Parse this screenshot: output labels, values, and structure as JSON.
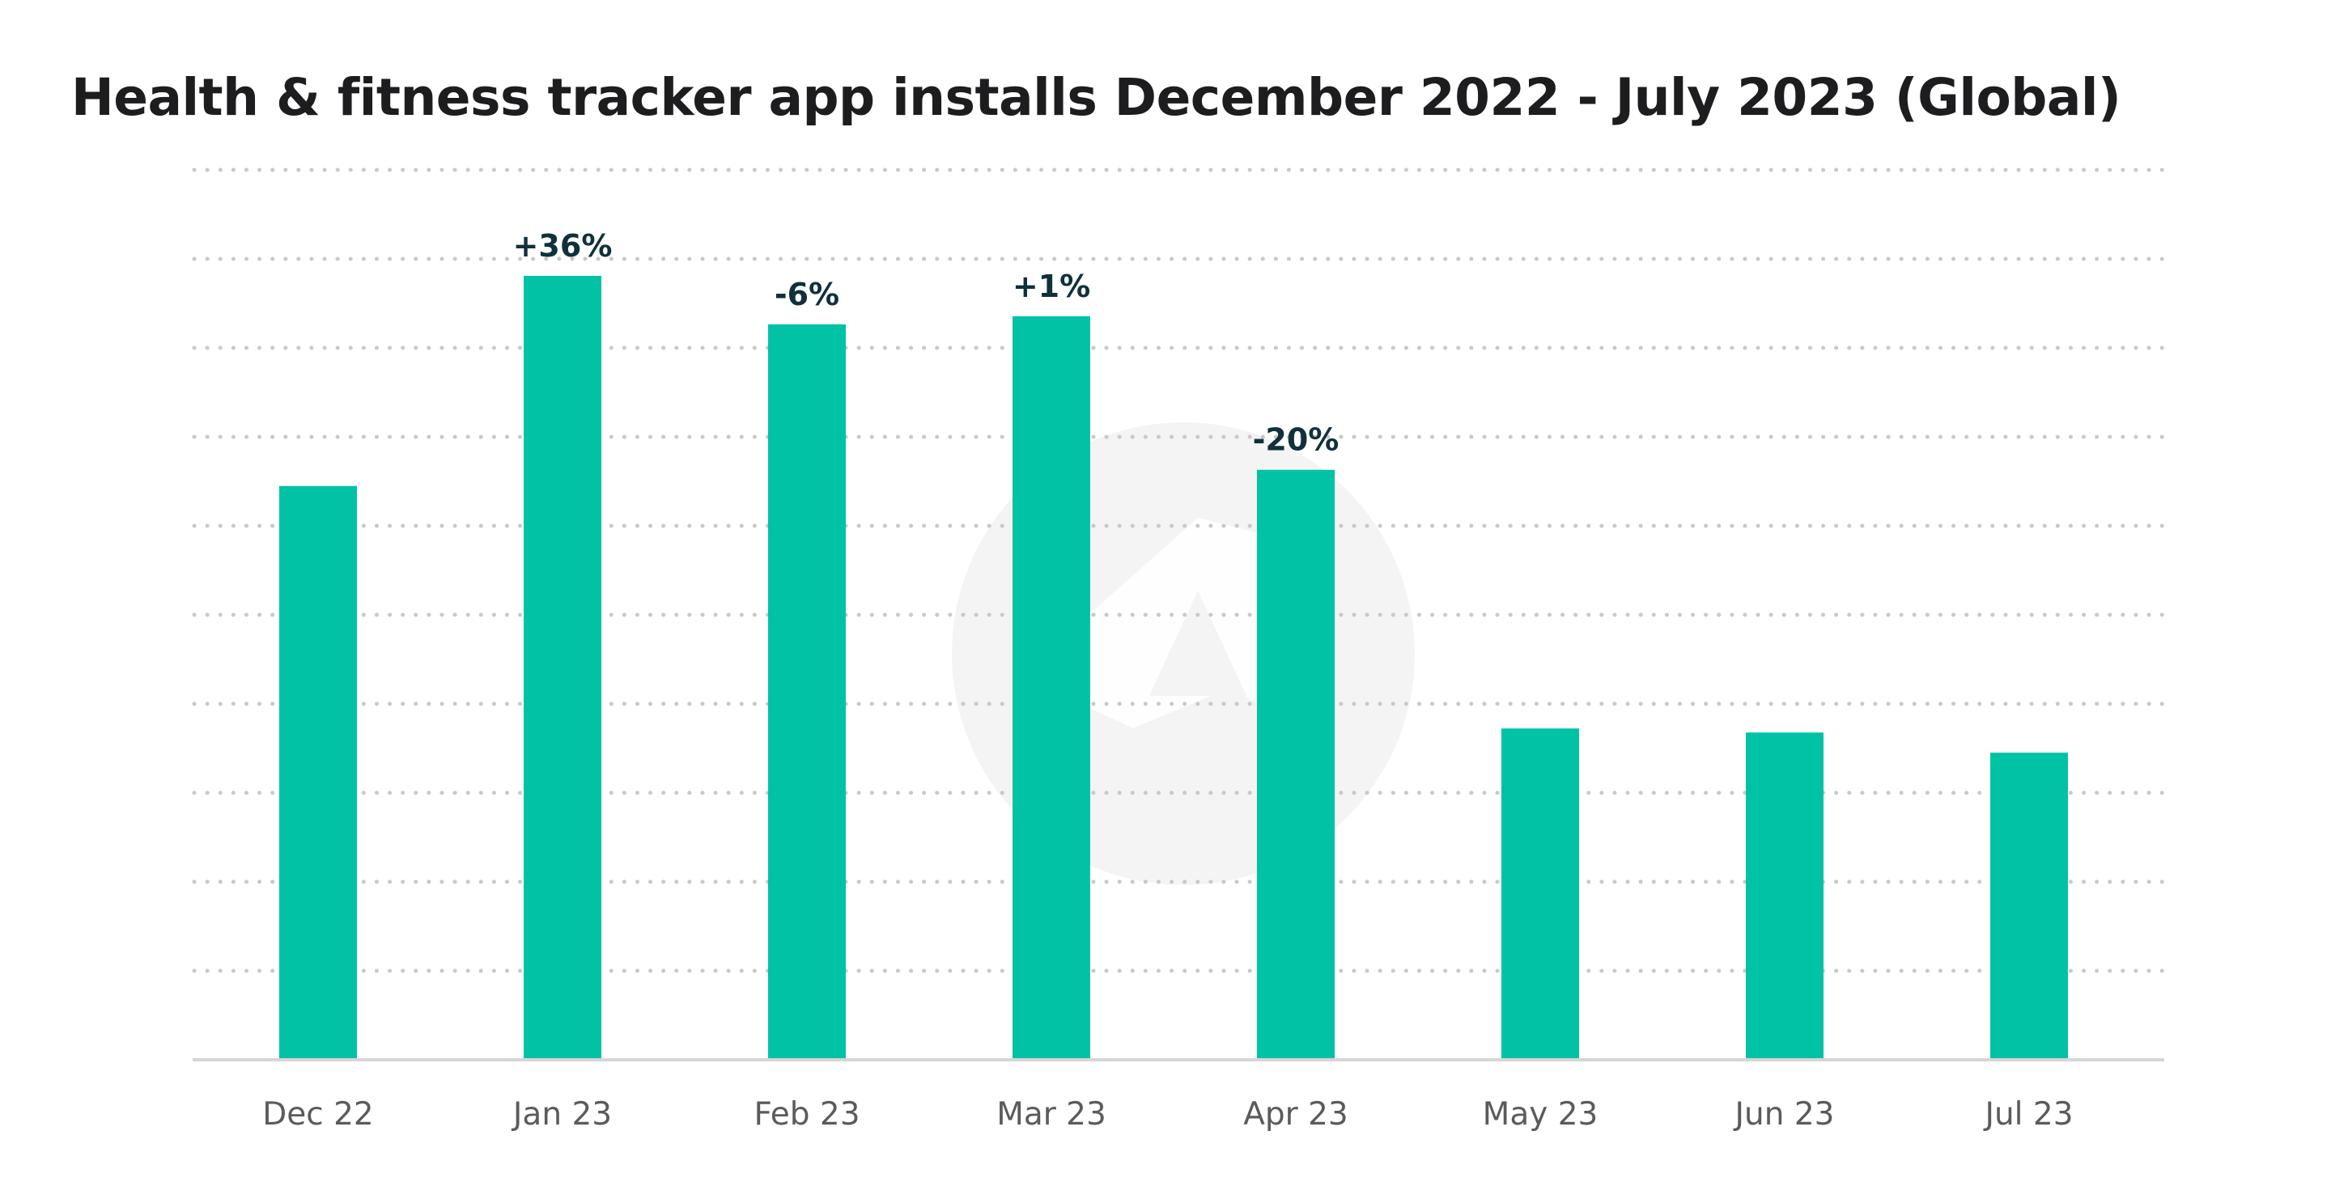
{
  "title": "Health & fitness tracker app installs December 2022 - July 2023 (Global)",
  "colors": {
    "bar": "#00c3a5",
    "label": "#10313b",
    "title": "#1d1d1f",
    "tick": "#5b5b5b",
    "grid": "#c9c9c9",
    "watermark": "#f4f4f4"
  },
  "watermark": "logo-watermark",
  "chart_data": {
    "type": "bar",
    "title": "Health & fitness tracker app installs December 2022 - July 2023 (Global)",
    "xlabel": "",
    "ylabel": "",
    "categories": [
      "Dec 22",
      "Jan 23",
      "Feb 23",
      "Mar 23",
      "Apr 23",
      "May 23",
      "Jun 23",
      "Jul 23"
    ],
    "values": [
      71,
      97,
      91,
      92,
      73,
      41,
      40.5,
      38
    ],
    "change_labels": [
      "",
      "+36%",
      "-6%",
      "+1%",
      "-20%",
      "",
      "",
      ""
    ],
    "ylim": [
      0,
      100
    ],
    "grid": true,
    "y_tick_labels_shown": false,
    "legend": "none"
  }
}
